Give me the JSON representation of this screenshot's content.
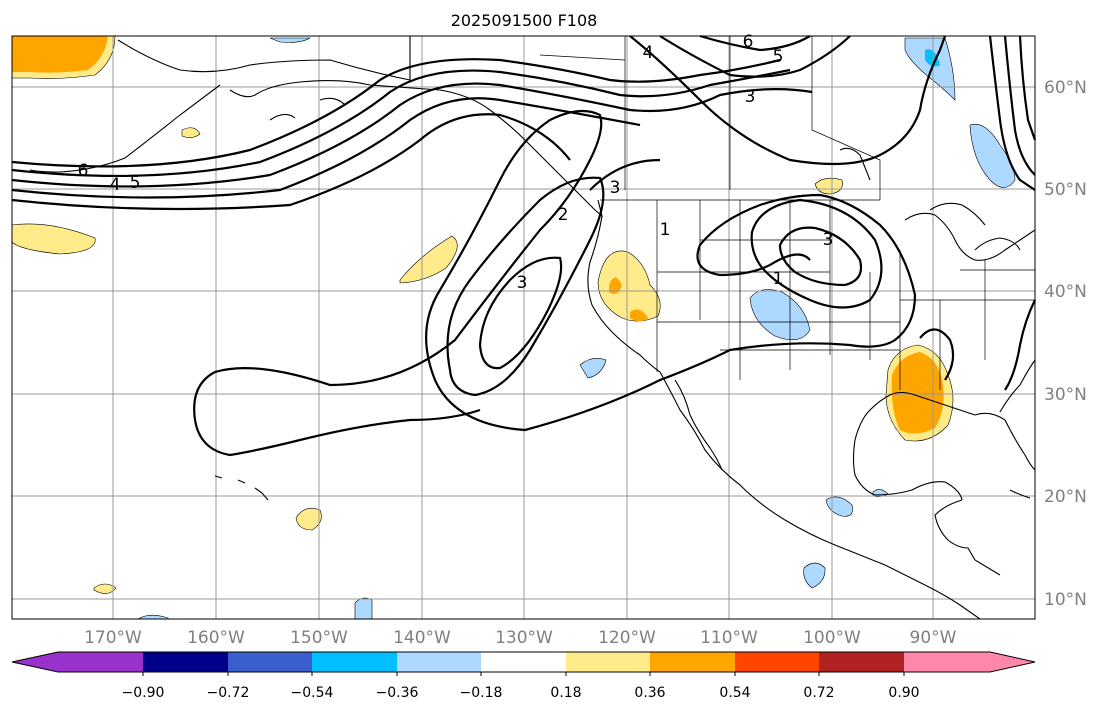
{
  "title": "2025091500 F108",
  "lon_labels": [
    "170°W",
    "160°W",
    "150°W",
    "140°W",
    "130°W",
    "120°W",
    "110°W",
    "100°W",
    "90°W"
  ],
  "lat_labels": [
    "60°N",
    "50°N",
    "40°N",
    "30°N",
    "20°N",
    "10°N"
  ],
  "colorbar": {
    "ticks": [
      "−0.90",
      "−0.72",
      "−0.54",
      "−0.36",
      "−0.18",
      "0.18",
      "0.36",
      "0.54",
      "0.72",
      "0.90"
    ],
    "colors": [
      "#9932cc",
      "#00008b",
      "#3a5fcd",
      "#00bfff",
      "#add8ff",
      "#ffffff",
      "#ffeb8a",
      "#ffa500",
      "#ff4500",
      "#b22222",
      "#ff88aa"
    ]
  },
  "contour_labels": [
    "6",
    "4",
    "5",
    "4",
    "5",
    "6",
    "3",
    "2",
    "3",
    "1",
    "3",
    "1",
    "3"
  ]
}
